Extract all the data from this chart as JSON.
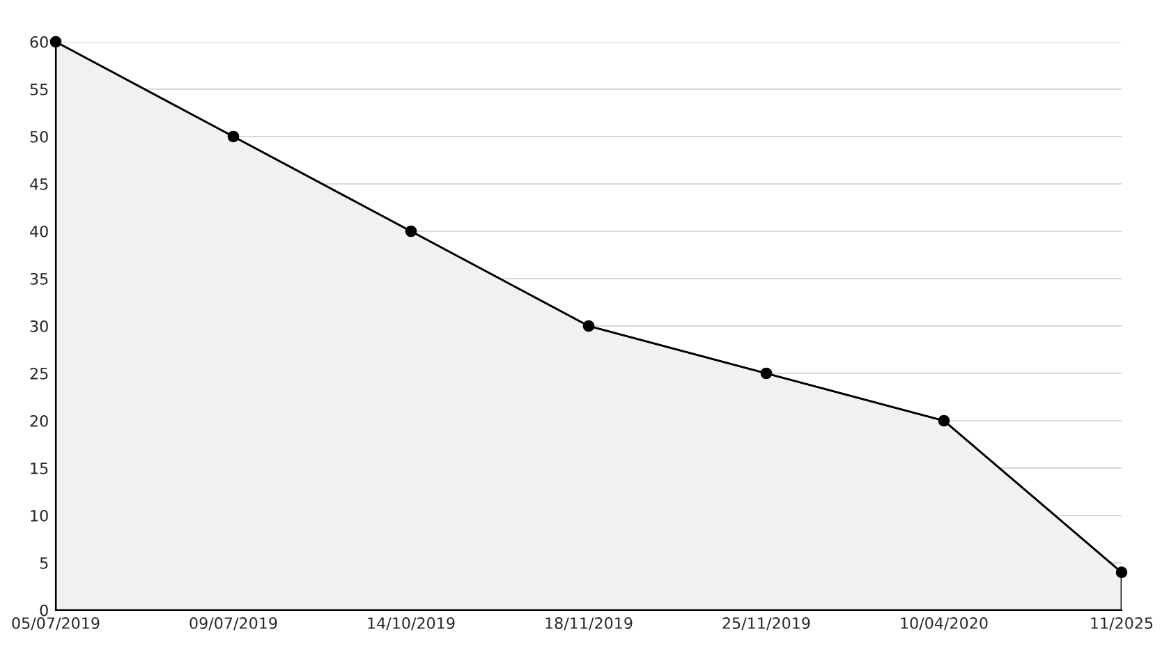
{
  "chart_data": {
    "type": "area",
    "categories": [
      "05/07/2019",
      "09/07/2019",
      "14/10/2019",
      "18/11/2019",
      "25/11/2019",
      "10/04/2020",
      "11/2025"
    ],
    "series": [
      {
        "color": "#000000",
        "values": [
          60,
          50,
          40,
          30,
          25,
          20,
          4
        ]
      }
    ],
    "ylim": [
      0,
      60
    ],
    "yticks": [
      0,
      5,
      10,
      15,
      20,
      25,
      30,
      35,
      40,
      45,
      50,
      55,
      60
    ],
    "grid": "y",
    "marker": "circle",
    "line_style": "solid",
    "legend": false
  }
}
